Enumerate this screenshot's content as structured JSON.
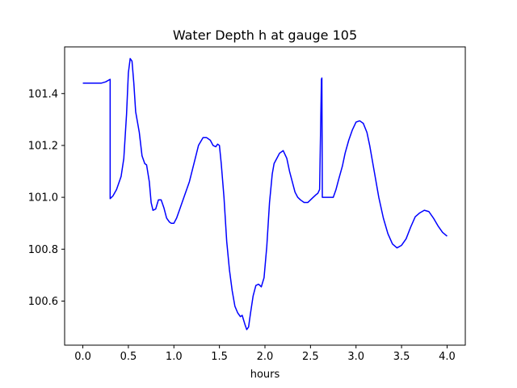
{
  "chart_data": {
    "type": "line",
    "title": "Water Depth h at gauge 105",
    "xlabel": "hours",
    "ylabel": "",
    "xlim": [
      -0.2,
      4.2
    ],
    "ylim": [
      100.43,
      101.58
    ],
    "xticks": [
      0.0,
      0.5,
      1.0,
      1.5,
      2.0,
      2.5,
      3.0,
      3.5,
      4.0
    ],
    "xtick_labels": [
      "0.0",
      "0.5",
      "1.0",
      "1.5",
      "2.0",
      "2.5",
      "3.0",
      "3.5",
      "4.0"
    ],
    "yticks": [
      100.6,
      100.8,
      101.0,
      101.2,
      101.4
    ],
    "ytick_labels": [
      "100.6",
      "100.8",
      "101.0",
      "101.2",
      "101.4"
    ],
    "grid": false,
    "series": [
      {
        "color": "#0000ff",
        "x": [
          0.0,
          0.1,
          0.2,
          0.25,
          0.3,
          0.3,
          0.33,
          0.37,
          0.42,
          0.45,
          0.48,
          0.5,
          0.52,
          0.54,
          0.56,
          0.58,
          0.6,
          0.62,
          0.65,
          0.68,
          0.7,
          0.73,
          0.75,
          0.77,
          0.8,
          0.83,
          0.86,
          0.89,
          0.92,
          0.95,
          0.97,
          1.0,
          1.03,
          1.07,
          1.12,
          1.17,
          1.22,
          1.27,
          1.32,
          1.36,
          1.4,
          1.43,
          1.46,
          1.48,
          1.5,
          1.52,
          1.55,
          1.58,
          1.61,
          1.64,
          1.67,
          1.7,
          1.73,
          1.75,
          1.78,
          1.8,
          1.82,
          1.84,
          1.87,
          1.9,
          1.93,
          1.96,
          1.99,
          2.02,
          2.05,
          2.08,
          2.1,
          2.13,
          2.16,
          2.2,
          2.24,
          2.27,
          2.3,
          2.33,
          2.36,
          2.39,
          2.43,
          2.47,
          2.5,
          2.53,
          2.56,
          2.58,
          2.6,
          2.62,
          2.625,
          2.63,
          2.635,
          2.64,
          2.645,
          2.65,
          2.7,
          2.73,
          2.75,
          2.78,
          2.81,
          2.85,
          2.88,
          2.92,
          2.96,
          3.0,
          3.04,
          3.08,
          3.12,
          3.15,
          3.2,
          3.25,
          3.3,
          3.35,
          3.4,
          3.45,
          3.5,
          3.55,
          3.6,
          3.65,
          3.7,
          3.75,
          3.8,
          3.85,
          3.9,
          3.95,
          4.0
        ],
        "values": [
          101.44,
          101.44,
          101.44,
          101.445,
          101.455,
          100.995,
          101.005,
          101.03,
          101.08,
          101.15,
          101.32,
          101.48,
          101.535,
          101.525,
          101.44,
          101.33,
          101.29,
          101.25,
          101.16,
          101.13,
          101.125,
          101.06,
          100.98,
          100.95,
          100.955,
          100.99,
          100.99,
          100.96,
          100.92,
          100.905,
          100.9,
          100.9,
          100.92,
          100.96,
          101.01,
          101.06,
          101.13,
          101.2,
          101.23,
          101.23,
          101.22,
          101.2,
          101.195,
          101.205,
          101.2,
          101.13,
          101.0,
          100.83,
          100.72,
          100.64,
          100.58,
          100.555,
          100.54,
          100.545,
          100.51,
          100.49,
          100.5,
          100.55,
          100.62,
          100.66,
          100.665,
          100.655,
          100.69,
          100.81,
          100.98,
          101.09,
          101.13,
          101.15,
          101.17,
          101.18,
          101.15,
          101.1,
          101.06,
          101.02,
          101.0,
          100.99,
          100.98,
          100.98,
          100.99,
          101.0,
          101.01,
          101.015,
          101.03,
          101.455,
          101.46,
          101.0,
          101.0,
          101.0,
          101.0,
          101.0,
          101.0,
          101.0,
          101.0,
          101.03,
          101.07,
          101.12,
          101.17,
          101.22,
          101.26,
          101.29,
          101.295,
          101.285,
          101.25,
          101.2,
          101.1,
          101.0,
          100.92,
          100.86,
          100.82,
          100.805,
          100.815,
          100.84,
          100.885,
          100.925,
          100.94,
          100.95,
          100.945,
          100.92,
          100.89,
          100.865,
          100.85
        ]
      }
    ]
  }
}
